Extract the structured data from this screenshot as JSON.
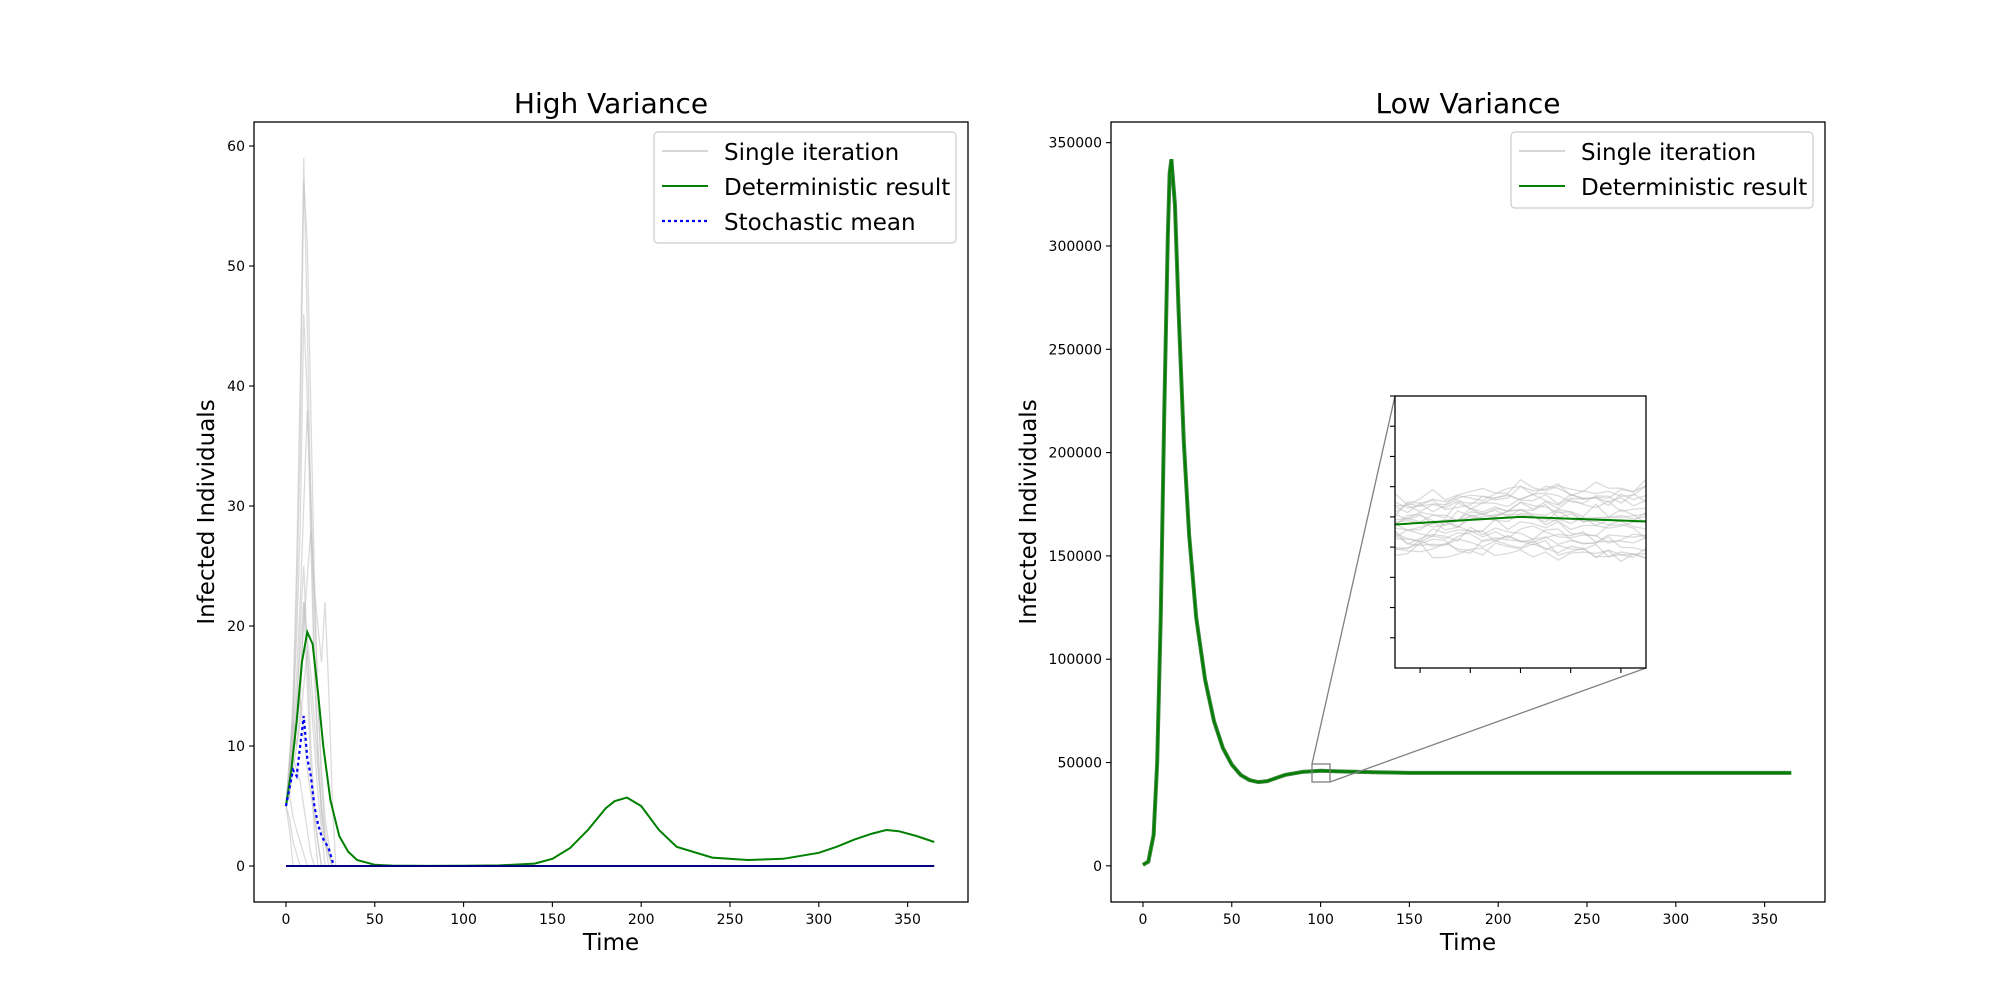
{
  "chart_data": [
    {
      "type": "line",
      "title": "High Variance",
      "xlabel": "Time",
      "ylabel": "Infected Individuals",
      "xlim": [
        -18,
        384
      ],
      "ylim": [
        -3,
        62
      ],
      "xticks": [
        0,
        50,
        100,
        150,
        200,
        250,
        300,
        350
      ],
      "yticks": [
        0,
        10,
        20,
        30,
        40,
        50,
        60
      ],
      "legend_position": "top-right",
      "legend": [
        "Single iteration",
        "Deterministic result",
        "Stochastic mean"
      ],
      "series": [
        {
          "name": "Deterministic result",
          "color": "#008000",
          "x": [
            0,
            3,
            6,
            9,
            12,
            15,
            18,
            21,
            25,
            30,
            35,
            40,
            50,
            60,
            80,
            100,
            120,
            140,
            150,
            160,
            170,
            180,
            185,
            192,
            200,
            210,
            220,
            240,
            260,
            280,
            300,
            310,
            320,
            330,
            338,
            345,
            355,
            365
          ],
          "y": [
            5.0,
            8.0,
            12.0,
            17.0,
            19.5,
            18.5,
            14.5,
            10.0,
            5.5,
            2.5,
            1.2,
            0.5,
            0.1,
            0.03,
            0.01,
            0.02,
            0.05,
            0.2,
            0.6,
            1.5,
            3.0,
            4.8,
            5.4,
            5.7,
            5.0,
            3.0,
            1.6,
            0.7,
            0.5,
            0.6,
            1.1,
            1.6,
            2.2,
            2.7,
            3.0,
            2.9,
            2.5,
            2.0
          ]
        },
        {
          "name": "Stochastic mean",
          "color": "#0000ff",
          "x": [
            0,
            2,
            4,
            6,
            8,
            10,
            12,
            14,
            16,
            18,
            20,
            22,
            24,
            26,
            27
          ],
          "y": [
            5.0,
            6.5,
            8.0,
            7.5,
            10.0,
            12.5,
            9.0,
            7.5,
            5.0,
            3.5,
            2.5,
            2.0,
            1.5,
            0.5,
            0.0
          ]
        },
        {
          "name": "Single iteration",
          "color": "#bdbdbd",
          "x": [
            0,
            2,
            4,
            6,
            8,
            10,
            12,
            14,
            16,
            18,
            20,
            22,
            24,
            26
          ],
          "y": [
            5,
            8,
            14,
            25,
            40,
            59,
            45,
            30,
            18,
            10,
            5,
            2,
            1,
            0
          ]
        },
        {
          "color": "#bdbdbd",
          "x": [
            0,
            2,
            4,
            6,
            8,
            10,
            12,
            14,
            16,
            18,
            20,
            22,
            24,
            26
          ],
          "y": [
            5,
            7,
            12,
            22,
            35,
            57,
            52,
            38,
            24,
            14,
            7,
            3,
            1,
            0
          ]
        },
        {
          "color": "#bdbdbd",
          "x": [
            0,
            2,
            4,
            6,
            8,
            10,
            12,
            14,
            16,
            18,
            20,
            22,
            24,
            26
          ],
          "y": [
            5,
            9,
            13,
            19,
            28,
            46,
            39,
            27,
            16,
            9,
            4,
            2,
            1,
            0
          ]
        },
        {
          "color": "#bdbdbd",
          "x": [
            0,
            2,
            4,
            6,
            8,
            10,
            12,
            14,
            16,
            18,
            20,
            22,
            24,
            26
          ],
          "y": [
            5,
            8,
            11,
            16,
            22,
            30,
            38,
            31,
            22,
            14,
            8,
            4,
            2,
            0
          ]
        },
        {
          "color": "#bdbdbd",
          "x": [
            0,
            2,
            4,
            6,
            8,
            10,
            12,
            14,
            16,
            18,
            20,
            22,
            24,
            26,
            28
          ],
          "y": [
            5,
            6,
            9,
            12,
            16,
            20,
            24,
            28,
            23,
            20,
            17,
            22,
            15,
            6,
            0
          ]
        },
        {
          "color": "#bdbdbd",
          "x": [
            0,
            2,
            4,
            6,
            8,
            10,
            12,
            14,
            16,
            18,
            20
          ],
          "y": [
            5,
            7,
            10,
            13,
            20,
            25,
            18,
            10,
            5,
            2,
            0
          ]
        },
        {
          "color": "#bdbdbd",
          "x": [
            0,
            2,
            4,
            6,
            8,
            10,
            12,
            14,
            16,
            18
          ],
          "y": [
            5,
            9,
            12,
            10,
            13,
            22,
            15,
            8,
            3,
            0
          ]
        },
        {
          "color": "#bdbdbd",
          "x": [
            0,
            2,
            4,
            6,
            8,
            10,
            12,
            14,
            16,
            18,
            20,
            22
          ],
          "y": [
            5,
            6,
            8,
            10,
            12,
            15,
            18,
            14,
            10,
            6,
            3,
            0
          ]
        },
        {
          "color": "#bdbdbd",
          "x": [
            0,
            2,
            4,
            6,
            8
          ],
          "y": [
            5,
            4,
            2,
            1,
            0
          ]
        },
        {
          "color": "#bdbdbd",
          "x": [
            0,
            2,
            4,
            6,
            8,
            10,
            12
          ],
          "y": [
            5,
            6,
            4,
            3,
            2,
            1,
            0
          ]
        },
        {
          "color": "#bdbdbd",
          "x": [
            0,
            2,
            4,
            6,
            8,
            10,
            12,
            14,
            16
          ],
          "y": [
            5,
            7,
            9,
            8,
            7,
            5,
            3,
            1,
            0
          ]
        },
        {
          "color": "#bdbdbd",
          "x": [
            0,
            2,
            4,
            6,
            8,
            10,
            12,
            14,
            16,
            18,
            20
          ],
          "y": [
            5,
            8,
            10,
            12,
            14,
            11,
            8,
            6,
            4,
            2,
            0
          ]
        },
        {
          "color": "#bdbdbd",
          "x": [
            0,
            2,
            4,
            6,
            8,
            10,
            12,
            14,
            16,
            18,
            20,
            22,
            24
          ],
          "y": [
            5,
            7,
            10,
            14,
            18,
            22,
            19,
            16,
            12,
            8,
            5,
            2,
            0
          ]
        },
        {
          "color": "#bdbdbd",
          "x": [
            0,
            2,
            4
          ],
          "y": [
            5,
            3,
            0
          ]
        },
        {
          "color": "#000080",
          "x": [
            0,
            365
          ],
          "y": [
            0,
            0
          ]
        }
      ]
    },
    {
      "type": "line",
      "title": "Low Variance",
      "xlabel": "Time",
      "ylabel": "Infected Individuals",
      "xlim": [
        -18,
        384
      ],
      "ylim": [
        -17500,
        360000
      ],
      "xticks": [
        0,
        50,
        100,
        150,
        200,
        250,
        300,
        350
      ],
      "yticks": [
        0,
        50000,
        100000,
        150000,
        200000,
        250000,
        300000,
        350000
      ],
      "legend_position": "top-right",
      "legend": [
        "Single iteration",
        "Deterministic result"
      ],
      "inset": {
        "xlim": [
          95,
          105
        ],
        "ylim": [
          41000,
          50000
        ],
        "position": "center-right"
      },
      "series": [
        {
          "name": "Deterministic result",
          "color": "#008000",
          "x": [
            0,
            3,
            6,
            8,
            10,
            12,
            14,
            15,
            16,
            18,
            20,
            23,
            26,
            30,
            35,
            40,
            45,
            50,
            55,
            60,
            65,
            70,
            75,
            80,
            90,
            100,
            110,
            130,
            150,
            200,
            250,
            300,
            365
          ],
          "y": [
            500,
            2000,
            15000,
            50000,
            120000,
            220000,
            305000,
            335000,
            342000,
            320000,
            270000,
            205000,
            160000,
            120000,
            90000,
            70000,
            57000,
            49000,
            44000,
            41500,
            40500,
            41000,
            42500,
            44000,
            45500,
            46000,
            45700,
            45300,
            45000,
            45000,
            45000,
            45000,
            45000
          ]
        }
      ]
    }
  ]
}
